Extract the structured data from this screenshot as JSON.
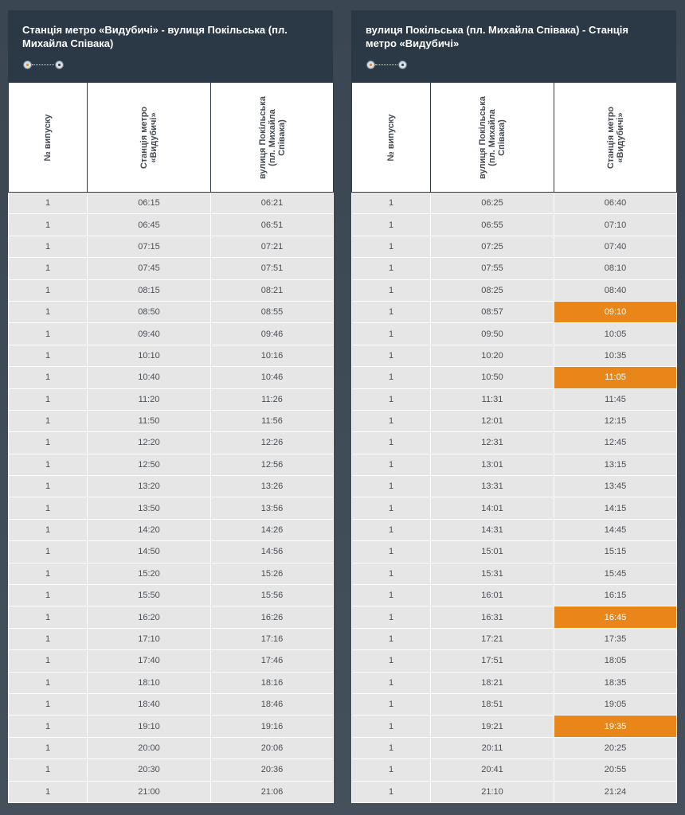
{
  "panels": [
    {
      "title": "Станція метро «Видубичі» - вулиця Покільська (пл. Михайла Співака)",
      "columns": [
        "№ випуску",
        "Станція метро «Видубичі»",
        "вулиця Покільська (пл. Михайла Співака)"
      ],
      "rows": [
        [
          "1",
          "06:15",
          "06:21"
        ],
        [
          "1",
          "06:45",
          "06:51"
        ],
        [
          "1",
          "07:15",
          "07:21"
        ],
        [
          "1",
          "07:45",
          "07:51"
        ],
        [
          "1",
          "08:15",
          "08:21"
        ],
        [
          "1",
          "08:50",
          "08:55"
        ],
        [
          "1",
          "09:40",
          "09:46"
        ],
        [
          "1",
          "10:10",
          "10:16"
        ],
        [
          "1",
          "10:40",
          "10:46"
        ],
        [
          "1",
          "11:20",
          "11:26"
        ],
        [
          "1",
          "11:50",
          "11:56"
        ],
        [
          "1",
          "12:20",
          "12:26"
        ],
        [
          "1",
          "12:50",
          "12:56"
        ],
        [
          "1",
          "13:20",
          "13:26"
        ],
        [
          "1",
          "13:50",
          "13:56"
        ],
        [
          "1",
          "14:20",
          "14:26"
        ],
        [
          "1",
          "14:50",
          "14:56"
        ],
        [
          "1",
          "15:20",
          "15:26"
        ],
        [
          "1",
          "15:50",
          "15:56"
        ],
        [
          "1",
          "16:20",
          "16:26"
        ],
        [
          "1",
          "17:10",
          "17:16"
        ],
        [
          "1",
          "17:40",
          "17:46"
        ],
        [
          "1",
          "18:10",
          "18:16"
        ],
        [
          "1",
          "18:40",
          "18:46"
        ],
        [
          "1",
          "19:10",
          "19:16"
        ],
        [
          "1",
          "20:00",
          "20:06"
        ],
        [
          "1",
          "20:30",
          "20:36"
        ],
        [
          "1",
          "21:00",
          "21:06"
        ]
      ],
      "highlighted_cells": []
    },
    {
      "title": "вулиця Покільська (пл. Михайла Співака) - Станція метро «Видубичі»",
      "columns": [
        "№ випуску",
        "вулиця Покільська (пл. Михайла Співака)",
        "Станція метро «Видубичі»"
      ],
      "rows": [
        [
          "1",
          "06:25",
          "06:40"
        ],
        [
          "1",
          "06:55",
          "07:10"
        ],
        [
          "1",
          "07:25",
          "07:40"
        ],
        [
          "1",
          "07:55",
          "08:10"
        ],
        [
          "1",
          "08:25",
          "08:40"
        ],
        [
          "1",
          "08:57",
          "09:10"
        ],
        [
          "1",
          "09:50",
          "10:05"
        ],
        [
          "1",
          "10:20",
          "10:35"
        ],
        [
          "1",
          "10:50",
          "11:05"
        ],
        [
          "1",
          "11:31",
          "11:45"
        ],
        [
          "1",
          "12:01",
          "12:15"
        ],
        [
          "1",
          "12:31",
          "12:45"
        ],
        [
          "1",
          "13:01",
          "13:15"
        ],
        [
          "1",
          "13:31",
          "13:45"
        ],
        [
          "1",
          "14:01",
          "14:15"
        ],
        [
          "1",
          "14:31",
          "14:45"
        ],
        [
          "1",
          "15:01",
          "15:15"
        ],
        [
          "1",
          "15:31",
          "15:45"
        ],
        [
          "1",
          "16:01",
          "16:15"
        ],
        [
          "1",
          "16:31",
          "16:45"
        ],
        [
          "1",
          "17:21",
          "17:35"
        ],
        [
          "1",
          "17:51",
          "18:05"
        ],
        [
          "1",
          "18:21",
          "18:35"
        ],
        [
          "1",
          "18:51",
          "19:05"
        ],
        [
          "1",
          "19:21",
          "19:35"
        ],
        [
          "1",
          "20:11",
          "20:25"
        ],
        [
          "1",
          "20:41",
          "20:55"
        ],
        [
          "1",
          "21:10",
          "21:24"
        ]
      ],
      "highlighted_cells": [
        [
          5,
          2
        ],
        [
          8,
          2
        ],
        [
          19,
          2
        ],
        [
          24,
          2
        ]
      ]
    }
  ],
  "colors": {
    "header_bg": "#2b3946",
    "highlight": "#e8861a",
    "row_bg": "#e6e6e6"
  },
  "icons": {
    "route": "route-dots-icon"
  }
}
